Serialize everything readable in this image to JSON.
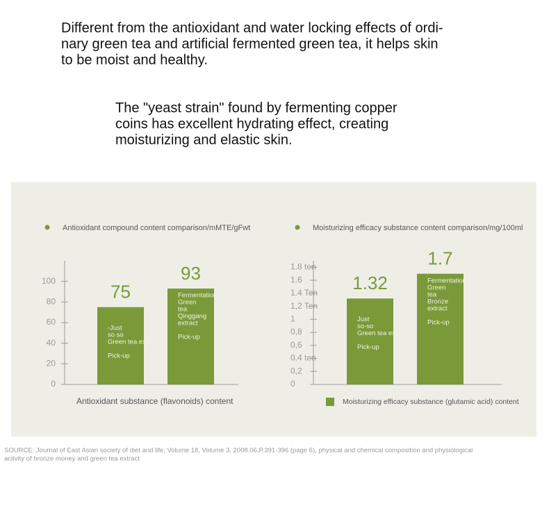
{
  "intro": [
    "Different from the antioxidant and water locking effects of ordi-",
    "nary green tea and artificial fermented green tea, it helps skin",
    "to be moist and healthy."
  ],
  "intro2": [
    "The \"yeast strain\" found by fermenting copper",
    "coins has excellent hydrating effect, creating",
    "moisturizing and elastic skin."
  ],
  "chart_data": [
    {
      "type": "bar",
      "title": "Antioxidant compound content comparison/mMTE/gFwt",
      "x_label": "Antioxidant substance (flavonoids) content",
      "bar_labels": [
        [
          "-Just",
          "so so",
          "Green tea extract",
          "Pick-up"
        ],
        [
          "Fermentation",
          "Green",
          "tea",
          "Qinggang",
          "extract",
          "Pick-up"
        ]
      ],
      "values": [
        75,
        93
      ],
      "color": "#7a9a3a",
      "ylim": [
        0,
        120
      ],
      "yticks": [
        0,
        20,
        40,
        60,
        80,
        100
      ]
    },
    {
      "type": "bar",
      "title": "Moisturizing efficacy substance content comparison/mg/100ml",
      "bar_labels": [
        [
          "Just",
          "so-so",
          "Green tea extract",
          "Pick-up"
        ],
        [
          "Fermentation",
          "Green",
          "tea",
          "Bronze",
          "extract",
          "Pick-up"
        ]
      ],
      "series": [
        {
          "name": "Moisturizing efficacy substance (glutamic acid) content",
          "color": "#7a9a3a",
          "values": [
            1.32,
            1.7
          ]
        }
      ],
      "ylim": [
        0,
        1.9
      ],
      "yticks": [
        0,
        {
          "value": 0.2,
          "label": "0,2"
        },
        {
          "value": 0.4,
          "label": "0.4 ten"
        },
        {
          "value": 0.6,
          "label": "0,6"
        },
        {
          "value": 0.8,
          "label": "0,8"
        },
        1,
        {
          "value": 1.2,
          "label": "1,2 Ten"
        },
        {
          "value": 1.4,
          "label": "1.4 Ten"
        },
        1.6,
        {
          "value": 1.8,
          "label": "1.8 ten"
        }
      ]
    }
  ],
  "source": [
    "SOURCE: Journal of East Asian society of diet and life, Volume 18, Volume 3, 2008.06,P.391-396 (page 6), physical and chemical composition and physiological",
    "activity of bronze money and green tea extract"
  ]
}
